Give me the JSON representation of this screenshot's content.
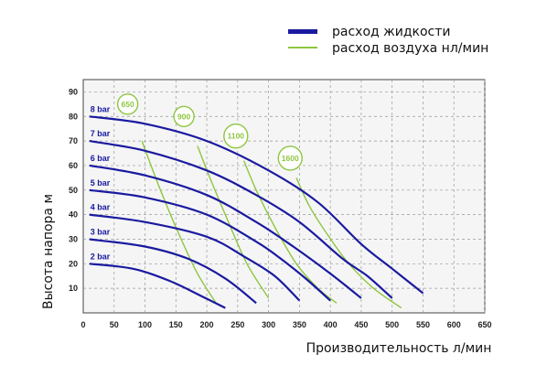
{
  "legend": {
    "liquid_label": "расход жидкости",
    "air_label": "расход воздуха нл/мин"
  },
  "colors": {
    "liquid": "#1a1aa0",
    "air": "#8dc63f",
    "grid": "#999999",
    "plot_bg": "#f5f5f5"
  },
  "chart_data": {
    "type": "line",
    "xlabel": "Производительность  л/мин",
    "ylabel": "Высота напора  м",
    "xlim": [
      0,
      650
    ],
    "ylim": [
      0,
      95
    ],
    "xticks": [
      "0",
      "50",
      "100",
      "150",
      "200",
      "250",
      "300",
      "350",
      "400",
      "450",
      "500",
      "550",
      "600",
      "650"
    ],
    "yticks": [
      "10",
      "20",
      "30",
      "40",
      "50",
      "60",
      "70",
      "80",
      "90"
    ],
    "grid": "dashed",
    "series": [
      {
        "name": "8 bar",
        "points": [
          [
            10,
            80
          ],
          [
            100,
            77
          ],
          [
            200,
            70
          ],
          [
            300,
            58
          ],
          [
            380,
            45
          ],
          [
            450,
            28
          ],
          [
            500,
            18
          ],
          [
            550,
            8
          ]
        ]
      },
      {
        "name": "7 bar",
        "points": [
          [
            10,
            70
          ],
          [
            100,
            66
          ],
          [
            200,
            58
          ],
          [
            280,
            48
          ],
          [
            350,
            37
          ],
          [
            420,
            22
          ],
          [
            460,
            15
          ],
          [
            500,
            6
          ]
        ]
      },
      {
        "name": "6 bar",
        "points": [
          [
            10,
            60
          ],
          [
            100,
            56
          ],
          [
            200,
            48
          ],
          [
            280,
            37
          ],
          [
            340,
            27
          ],
          [
            400,
            16
          ],
          [
            450,
            6
          ]
        ]
      },
      {
        "name": "5 bar",
        "points": [
          [
            10,
            50
          ],
          [
            100,
            47
          ],
          [
            200,
            40
          ],
          [
            280,
            29
          ],
          [
            320,
            22
          ],
          [
            360,
            14
          ],
          [
            400,
            5
          ]
        ]
      },
      {
        "name": "4 bar",
        "points": [
          [
            10,
            40
          ],
          [
            100,
            37
          ],
          [
            200,
            31
          ],
          [
            260,
            23
          ],
          [
            310,
            15
          ],
          [
            350,
            5
          ]
        ]
      },
      {
        "name": "3 bar",
        "points": [
          [
            10,
            30
          ],
          [
            100,
            27
          ],
          [
            170,
            22
          ],
          [
            230,
            14
          ],
          [
            280,
            4
          ]
        ]
      },
      {
        "name": "2 bar",
        "points": [
          [
            10,
            20
          ],
          [
            80,
            18
          ],
          [
            140,
            13
          ],
          [
            190,
            7
          ],
          [
            230,
            2
          ]
        ]
      }
    ],
    "air_curves": [
      {
        "label": "650",
        "points": [
          [
            95,
            70
          ],
          [
            125,
            50
          ],
          [
            155,
            32
          ],
          [
            185,
            16
          ],
          [
            215,
            4
          ]
        ]
      },
      {
        "label": "900",
        "points": [
          [
            185,
            68
          ],
          [
            205,
            55
          ],
          [
            235,
            37
          ],
          [
            265,
            20
          ],
          [
            300,
            6
          ]
        ]
      },
      {
        "label": "1100",
        "points": [
          [
            260,
            62
          ],
          [
            280,
            50
          ],
          [
            310,
            35
          ],
          [
            345,
            20
          ],
          [
            380,
            10
          ],
          [
            410,
            4
          ]
        ]
      },
      {
        "label": "1600",
        "points": [
          [
            345,
            55
          ],
          [
            365,
            44
          ],
          [
            395,
            32
          ],
          [
            430,
            20
          ],
          [
            470,
            10
          ],
          [
            515,
            2
          ]
        ]
      }
    ],
    "air_label_values": [
      [
        72,
        85
      ],
      [
        163,
        80
      ],
      [
        247,
        72
      ],
      [
        335,
        63
      ]
    ]
  }
}
